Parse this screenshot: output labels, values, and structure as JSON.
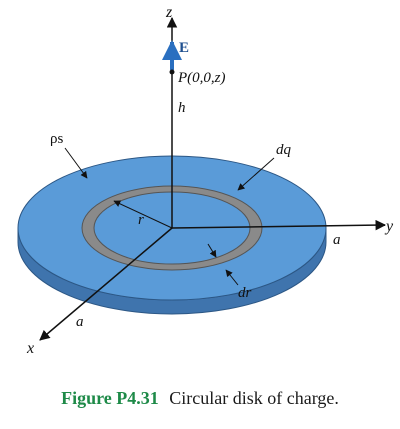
{
  "figure": {
    "axes": {
      "z": "z",
      "y": "y",
      "x": "x"
    },
    "labels": {
      "field": "E",
      "point": "P(0,0,z)",
      "height": "h",
      "surface_charge": "ρs",
      "charge_element": "dq",
      "radius": "r",
      "ring_width": "dr",
      "disk_radius_y": "a",
      "disk_radius_x": "a"
    },
    "colors": {
      "disk_top": "#5a9bd8",
      "disk_edge": "#3f74ad",
      "ring": "#8a8a8a",
      "field_arrow": "#2a6fc0",
      "caption_label": "#1e8a48"
    }
  },
  "caption": {
    "label": "Figure P4.31",
    "text": "Circular disk of charge."
  }
}
